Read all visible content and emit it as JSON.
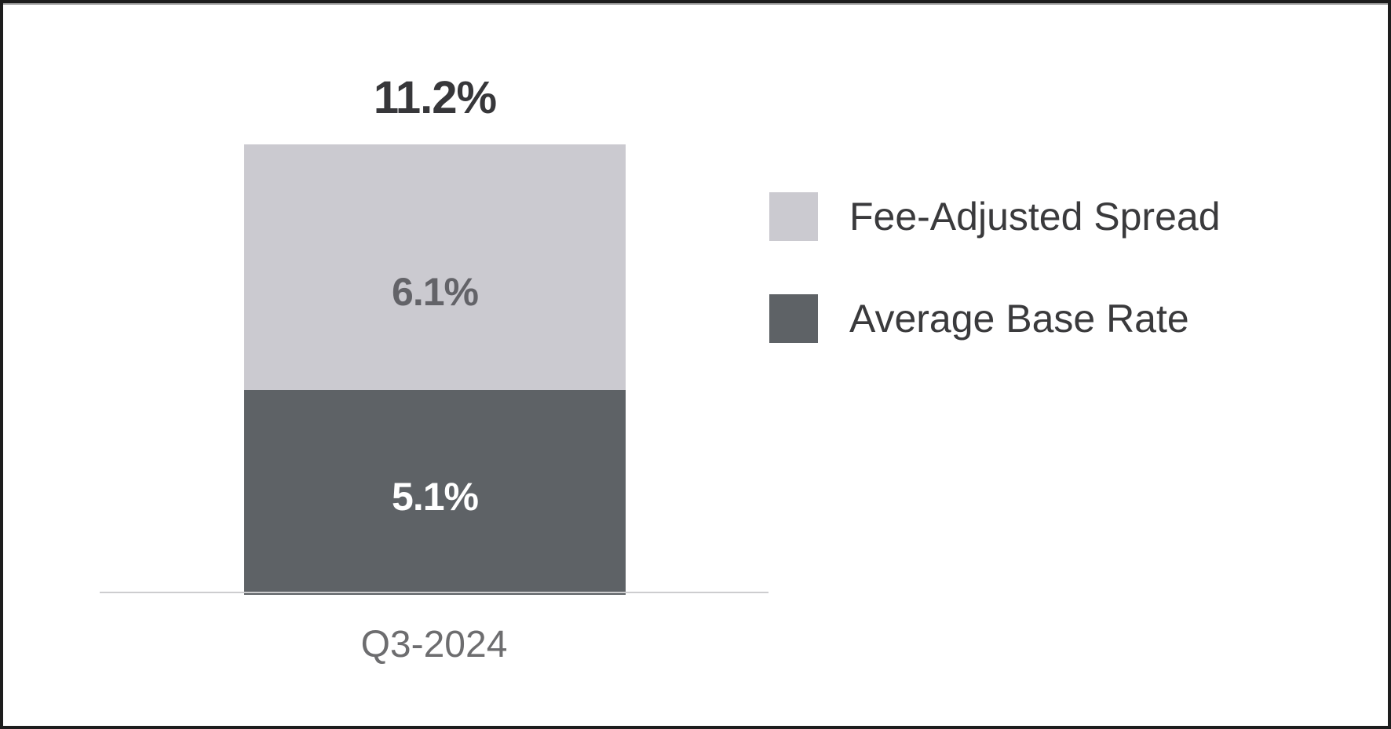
{
  "chart_data": {
    "type": "bar",
    "stacked": true,
    "title": "",
    "xlabel": "",
    "ylabel": "",
    "categories": [
      "Q3-2024"
    ],
    "series": [
      {
        "name": "Fee-Adjusted Spread",
        "values": [
          6.1
        ],
        "color": "#cbcad0",
        "data_label": "6.1%",
        "data_label_color": "#636368",
        "stack_position": "top"
      },
      {
        "name": "Average Base Rate",
        "values": [
          5.1
        ],
        "color": "#5e6266",
        "data_label": "5.1%",
        "data_label_color": "#ffffff",
        "stack_position": "bottom"
      }
    ],
    "total": 11.2,
    "total_label": "11.2%",
    "value_unit": "%",
    "ylim": [
      0,
      11.2
    ],
    "grid": false,
    "legend_position": "right"
  },
  "labels": {
    "total": "11.2%",
    "fee_adjusted_spread": "6.1%",
    "average_base_rate": "5.1%",
    "category": "Q3-2024"
  },
  "legend": {
    "items": [
      {
        "label": "Fee-Adjusted Spread",
        "color": "#cbcad0"
      },
      {
        "label": "Average Base Rate",
        "color": "#5e6266"
      }
    ]
  },
  "colors": {
    "frame_border": "#1d1d1d",
    "axis_line": "#cdcdcf",
    "total_text": "#37373a",
    "category_text": "#6d6d6f",
    "legend_text": "#3a3a3c",
    "background": "#ffffff"
  }
}
